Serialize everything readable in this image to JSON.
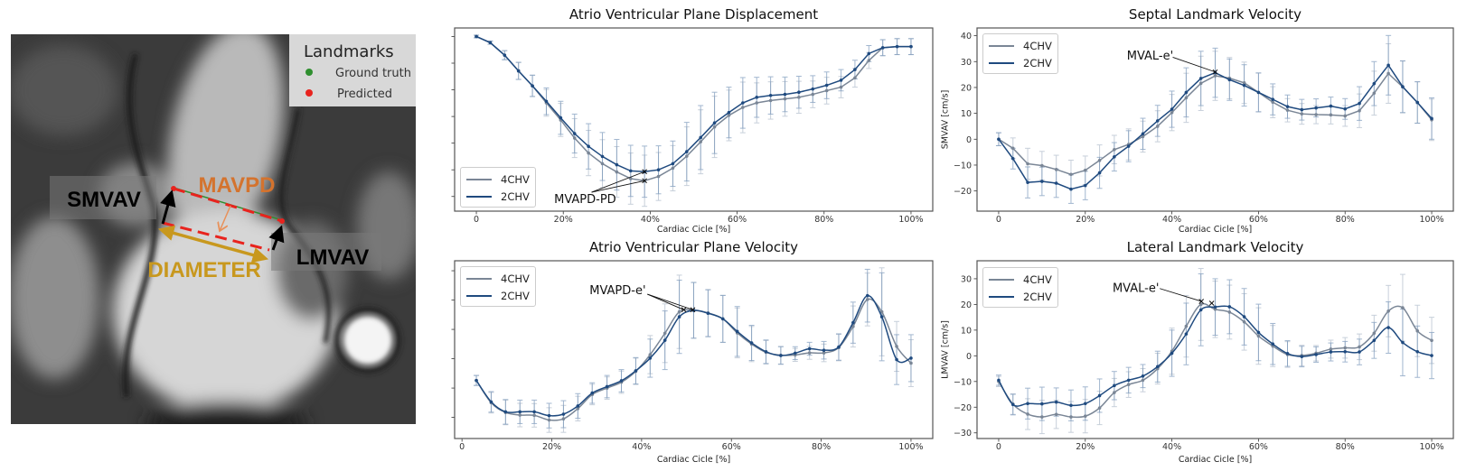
{
  "mri_panel": {
    "legend_title": "Landmarks",
    "legend_items": [
      {
        "label": "Ground truth",
        "color": "#2f8f2f"
      },
      {
        "label": "Predicted",
        "color": "#e8231e"
      }
    ],
    "labels": {
      "smvav": "SMVAV",
      "mavpd": "MAVPD",
      "diameter": "DIAMETER",
      "lmvav": "LMVAV"
    },
    "colors": {
      "mavpd": "#d4732e",
      "diameter": "#c8981e",
      "arrows": "#000000",
      "predicted_line": "#e8231e",
      "ground_truth_line": "#2f8f2f"
    }
  },
  "chart_data": [
    {
      "type": "line",
      "title": "Atrio Ventricular Plane Displacement",
      "xlabel": "Cardiac Cicle [%]",
      "ylabel": "",
      "x_ticks": [
        0,
        20,
        40,
        60,
        80,
        100
      ],
      "x_tick_labels": [
        "0",
        "20%",
        "40%",
        "60%",
        "80%",
        "100%"
      ],
      "y_tick_labels_shown": false,
      "ylim": [
        -0.55,
        6.32
      ],
      "legend": "lower-left",
      "smooth": false,
      "series": [
        {
          "name": "4CHV",
          "color": "#7a8696",
          "err_color": "#a9b6c6",
          "x": [
            0,
            3.2,
            6.5,
            9.7,
            12.9,
            16.1,
            19.4,
            22.6,
            25.8,
            29.0,
            32.3,
            35.5,
            38.7,
            41.9,
            45.2,
            48.4,
            51.6,
            54.8,
            58.1,
            61.3,
            64.5,
            67.7,
            71.0,
            74.2,
            77.4,
            80.6,
            83.9,
            87.1,
            90.3,
            93.5,
            96.8,
            100.0
          ],
          "y": [
            6.0,
            5.77,
            5.3,
            4.71,
            4.15,
            3.51,
            2.87,
            2.19,
            1.63,
            1.23,
            0.92,
            0.67,
            0.59,
            0.75,
            1.06,
            1.51,
            2.05,
            2.61,
            3.04,
            3.34,
            3.51,
            3.6,
            3.66,
            3.72,
            3.83,
            3.97,
            4.1,
            4.45,
            5.1,
            5.58,
            5.62,
            5.62
          ],
          "err": [
            0.05,
            0.06,
            0.17,
            0.32,
            0.4,
            0.5,
            0.62,
            0.73,
            0.85,
            0.9,
            0.95,
            0.96,
            0.96,
            0.9,
            0.85,
            1.1,
            1.2,
            1.15,
            0.95,
            0.95,
            0.75,
            0.7,
            0.65,
            0.6,
            0.5,
            0.5,
            0.4,
            0.35,
            0.3,
            0.3,
            0.3,
            0.3
          ]
        },
        {
          "name": "2CHV",
          "color": "#1f4a7f",
          "err_color": "#6f8fb5",
          "x": [
            0,
            3.2,
            6.5,
            9.7,
            12.9,
            16.1,
            19.4,
            22.6,
            25.8,
            29.0,
            32.3,
            35.5,
            38.7,
            41.9,
            45.2,
            48.4,
            51.6,
            54.8,
            58.1,
            61.3,
            64.5,
            67.7,
            71.0,
            74.2,
            77.4,
            80.6,
            83.9,
            87.1,
            90.3,
            93.5,
            96.8,
            100.0
          ],
          "y": [
            6.0,
            5.77,
            5.3,
            4.71,
            4.15,
            3.57,
            2.95,
            2.36,
            1.88,
            1.5,
            1.19,
            0.96,
            0.93,
            1.0,
            1.23,
            1.68,
            2.21,
            2.76,
            3.15,
            3.51,
            3.72,
            3.79,
            3.83,
            3.91,
            4.03,
            4.17,
            4.36,
            4.76,
            5.36,
            5.58,
            5.62,
            5.62
          ],
          "err": [
            0.05,
            0.06,
            0.17,
            0.32,
            0.4,
            0.5,
            0.62,
            0.73,
            0.85,
            0.9,
            0.95,
            0.96,
            0.96,
            0.9,
            0.85,
            1.1,
            1.2,
            1.15,
            0.95,
            0.95,
            0.75,
            0.7,
            0.65,
            0.6,
            0.5,
            0.5,
            0.4,
            0.35,
            0.3,
            0.3,
            0.3,
            0.3
          ]
        }
      ],
      "annotation": {
        "text": "MVAPD-PD",
        "text_at": [
          17.9,
          -0.24
        ],
        "arrow_from": [
          26.5,
          0.16
        ],
        "targets": [
          [
            38.7,
            0.93
          ],
          [
            38.7,
            0.59
          ]
        ],
        "markers": [
          [
            38.7,
            0.93
          ],
          [
            38.7,
            0.59
          ]
        ]
      }
    },
    {
      "type": "line",
      "title": "Septal Landmark Velocity",
      "xlabel": "Cardiac Cicle [%]",
      "ylabel": "SMVAV [cm/s]",
      "x_ticks": [
        0,
        20,
        40,
        60,
        80,
        100
      ],
      "x_tick_labels": [
        "0",
        "20%",
        "40%",
        "60%",
        "80%",
        "100%"
      ],
      "y_ticks": [
        -20,
        -10,
        0,
        10,
        20,
        30,
        40
      ],
      "y_tick_labels": [
        "−20",
        "−10",
        "0",
        "10",
        "20",
        "30",
        "40"
      ],
      "y_tick_labels_shown": true,
      "ylim": [
        -27.8,
        43
      ],
      "legend": "upper-left",
      "smooth": false,
      "series": [
        {
          "name": "4CHV",
          "color": "#7a8696",
          "err_color": "#a9b6c6",
          "x": [
            0,
            3.3,
            6.7,
            10,
            13.3,
            16.7,
            20,
            23.3,
            26.7,
            30,
            33.3,
            36.7,
            40,
            43.3,
            46.7,
            50,
            53.3,
            56.7,
            60,
            63.3,
            66.7,
            70,
            73.3,
            76.7,
            80,
            83.3,
            86.7,
            90,
            93.3,
            96.7,
            100
          ],
          "y": [
            0,
            -3.5,
            -9.5,
            -10.2,
            -11.7,
            -13.6,
            -12,
            -8.2,
            -4,
            -2,
            1,
            5,
            10.3,
            16,
            21.6,
            24.5,
            23.6,
            21.8,
            18.1,
            14.3,
            11.2,
            9.8,
            9.5,
            9.4,
            9,
            11,
            17.8,
            25.4,
            20.2,
            14.2,
            7.5
          ],
          "err": [
            2.5,
            4,
            6,
            5.5,
            5.5,
            5.5,
            5.5,
            6,
            5.5,
            6,
            6,
            6,
            7,
            9.5,
            10.5,
            9.5,
            8,
            8,
            7.5,
            6,
            4.5,
            4,
            3.5,
            3.5,
            4,
            6.5,
            8.5,
            11.5,
            10,
            8,
            8
          ]
        },
        {
          "name": "2CHV",
          "color": "#1f4a7f",
          "err_color": "#6f8fb5",
          "x": [
            0,
            3.3,
            6.7,
            10,
            13.3,
            16.7,
            20,
            23.3,
            26.7,
            30,
            33.3,
            36.7,
            40,
            43.3,
            46.7,
            50,
            53.3,
            56.7,
            60,
            63.3,
            66.7,
            70,
            73.3,
            76.7,
            80,
            83.3,
            86.7,
            90,
            93.3,
            96.7,
            100
          ],
          "y": [
            0,
            -7.5,
            -16.7,
            -16.3,
            -17,
            -19.3,
            -17.9,
            -13,
            -6.8,
            -2.7,
            2.1,
            7.1,
            11.6,
            18.1,
            23.5,
            25.7,
            23,
            20.8,
            18.1,
            15.4,
            12.6,
            11.4,
            12.1,
            12.8,
            11.7,
            13.8,
            21.5,
            28.6,
            20.3,
            14.2,
            8.0
          ],
          "err": [
            2.5,
            4,
            6,
            5.5,
            5.5,
            5.5,
            5.5,
            6,
            5.5,
            6,
            6,
            6,
            7,
            9.5,
            10.5,
            9.5,
            8,
            8,
            7.5,
            6,
            4.5,
            4,
            3.5,
            3.5,
            4,
            6.5,
            8.5,
            11.5,
            10,
            8,
            8
          ]
        }
      ],
      "annotation": {
        "text": "MVAL-e'",
        "text_at": [
          29.6,
          30.8
        ],
        "arrow_from": [
          40.2,
          31.7
        ],
        "targets": [
          [
            50,
            26
          ]
        ],
        "markers": [
          [
            50,
            26
          ]
        ]
      }
    },
    {
      "type": "line",
      "title": "Atrio Ventricular Plane Velocity",
      "xlabel": "Cardiac Cicle [%]",
      "ylabel": "",
      "x_ticks": [
        0,
        20,
        40,
        60,
        80,
        100
      ],
      "x_tick_labels": [
        "0",
        "20%",
        "40%",
        "60%",
        "80%",
        "100%"
      ],
      "y_tick_labels_shown": false,
      "ylim": [
        -0.72,
        5.34
      ],
      "legend": "upper-left",
      "smooth": true,
      "series": [
        {
          "name": "4CHV",
          "color": "#7a8696",
          "err_color": "#a9b6c6",
          "x": [
            3.2,
            6.5,
            9.7,
            12.9,
            16.1,
            19.4,
            22.6,
            25.8,
            29.0,
            32.3,
            35.5,
            38.7,
            41.9,
            45.2,
            48.4,
            51.6,
            54.8,
            58.1,
            61.3,
            64.5,
            67.7,
            71.0,
            74.2,
            77.4,
            80.6,
            83.9,
            87.1,
            90.3,
            93.5,
            96.8,
            100.0
          ],
          "y": [
            1.26,
            0.5,
            0.17,
            0.08,
            0.07,
            -0.09,
            -0.05,
            0.3,
            0.78,
            1.0,
            1.2,
            1.57,
            2.14,
            2.87,
            3.6,
            3.65,
            3.56,
            3.36,
            2.88,
            2.5,
            2.22,
            2.12,
            2.13,
            2.2,
            2.2,
            2.38,
            3.1,
            4.02,
            3.6,
            2.42,
            1.85
          ],
          "err": [
            0.17,
            0.35,
            0.42,
            0.4,
            0.4,
            0.42,
            0.46,
            0.42,
            0.35,
            0.38,
            0.38,
            0.45,
            0.65,
            1.0,
            1.25,
            0.95,
            0.8,
            0.8,
            0.85,
            0.6,
            0.4,
            0.3,
            0.22,
            0.22,
            0.3,
            0.45,
            0.7,
            0.9,
            1.5,
            0.85,
            0.8
          ]
        },
        {
          "name": "2CHV",
          "color": "#1f4a7f",
          "err_color": "#6f8fb5",
          "x": [
            3.2,
            6.5,
            9.7,
            12.9,
            16.1,
            19.4,
            22.6,
            25.8,
            29.0,
            32.3,
            35.5,
            38.7,
            41.9,
            45.2,
            48.4,
            51.6,
            54.8,
            58.1,
            61.3,
            64.5,
            67.7,
            71.0,
            74.2,
            77.4,
            80.6,
            83.9,
            87.1,
            90.3,
            93.5,
            96.8,
            100.0
          ],
          "y": [
            1.26,
            0.53,
            0.19,
            0.19,
            0.19,
            0.06,
            0.11,
            0.39,
            0.83,
            1.05,
            1.25,
            1.59,
            2.02,
            2.63,
            3.43,
            3.65,
            3.55,
            3.36,
            2.93,
            2.54,
            2.24,
            2.11,
            2.19,
            2.34,
            2.29,
            2.4,
            3.23,
            4.15,
            3.43,
            1.97,
            2.02
          ],
          "err": [
            0.17,
            0.35,
            0.42,
            0.4,
            0.4,
            0.42,
            0.46,
            0.42,
            0.35,
            0.38,
            0.38,
            0.45,
            0.65,
            1.0,
            1.25,
            0.95,
            0.8,
            0.8,
            0.85,
            0.6,
            0.4,
            0.3,
            0.22,
            0.22,
            0.3,
            0.45,
            0.7,
            0.9,
            1.5,
            0.85,
            0.8
          ]
        }
      ],
      "annotation": {
        "text": "MVAPD-e'",
        "text_at": [
          28.4,
          4.2
        ],
        "arrow_from": [
          41.3,
          4.2
        ],
        "targets": [
          [
            49.4,
            3.67
          ],
          [
            51.4,
            3.67
          ]
        ],
        "markers": [
          [
            49.4,
            3.67
          ],
          [
            51.4,
            3.67
          ]
        ]
      }
    },
    {
      "type": "line",
      "title": "Lateral Landmark Velocity",
      "xlabel": "Cardiac Cicle [%]",
      "ylabel": "LMVAV [cm/s]",
      "x_ticks": [
        0,
        20,
        40,
        60,
        80,
        100
      ],
      "x_tick_labels": [
        "0",
        "20%",
        "40%",
        "60%",
        "80%",
        "100%"
      ],
      "y_ticks": [
        -30,
        -20,
        -10,
        0,
        10,
        20,
        30
      ],
      "y_tick_labels": [
        "−30",
        "−20",
        "−10",
        "0",
        "10",
        "20",
        "30"
      ],
      "y_tick_labels_shown": true,
      "ylim": [
        -32.2,
        37
      ],
      "legend": "upper-left",
      "smooth": true,
      "series": [
        {
          "name": "4CHV",
          "color": "#7a8696",
          "err_color": "#a9b6c6",
          "x": [
            0,
            3.3,
            6.7,
            10,
            13.3,
            16.7,
            20,
            23.3,
            26.7,
            30,
            33.3,
            36.7,
            40,
            43.3,
            46.7,
            50,
            53.3,
            56.7,
            60,
            63.3,
            66.7,
            70,
            73.3,
            76.7,
            80,
            83.3,
            86.7,
            90,
            93.3,
            96.7,
            100
          ],
          "y": [
            -10,
            -18.8,
            -22.7,
            -23.8,
            -22.8,
            -23.8,
            -23.5,
            -20.3,
            -14.3,
            -11.2,
            -9.5,
            -5,
            1.8,
            11.5,
            20,
            18.1,
            17,
            13.2,
            7.7,
            3.8,
            0.5,
            0.1,
            1,
            2.6,
            3.1,
            3.5,
            8.8,
            17.4,
            18.7,
            9.7,
            6.0
          ],
          "err": [
            2,
            4,
            6,
            6.5,
            5.5,
            6,
            6.5,
            6.5,
            5.5,
            5,
            4.5,
            6,
            9,
            12,
            14,
            11,
            10.5,
            11,
            11,
            8,
            5,
            4,
            3,
            3.5,
            4,
            5,
            7,
            10,
            13,
            10,
            9
          ]
        },
        {
          "name": "2CHV",
          "color": "#1f4a7f",
          "err_color": "#6f8fb5",
          "x": [
            0,
            3.3,
            6.7,
            10,
            13.3,
            16.7,
            20,
            23.3,
            26.7,
            30,
            33.3,
            36.7,
            40,
            43.3,
            46.7,
            50,
            53.3,
            56.7,
            60,
            63.3,
            66.7,
            70,
            73.3,
            76.7,
            80,
            83.3,
            86.7,
            90,
            93.3,
            96.7,
            100
          ],
          "y": [
            -9.5,
            -19,
            -18.6,
            -18.7,
            -18,
            -19.3,
            -18.6,
            -15.5,
            -11.6,
            -9.5,
            -7.9,
            -4.2,
            1,
            8.5,
            17.9,
            19,
            19.1,
            15.2,
            9.1,
            4.6,
            0.9,
            -0.3,
            0.5,
            1.5,
            1.6,
            1.5,
            6,
            11,
            5.2,
            1.6,
            0.1
          ],
          "err": [
            2,
            4,
            6,
            6.5,
            5.5,
            6,
            6.5,
            6.5,
            5.5,
            5,
            4.5,
            6,
            9,
            12,
            14,
            11,
            10.5,
            11,
            11,
            8,
            5,
            4,
            3,
            3.5,
            4,
            5,
            7,
            10,
            13,
            10,
            9
          ]
        }
      ],
      "annotation": {
        "text": "MVAL-e'",
        "text_at": [
          26.3,
          24.9
        ],
        "arrow_from": [
          37.2,
          26.2
        ],
        "targets": [
          [
            46.8,
            21.2
          ]
        ],
        "markers": [
          [
            46.8,
            21.2
          ],
          [
            49.2,
            20.5
          ]
        ]
      }
    }
  ]
}
